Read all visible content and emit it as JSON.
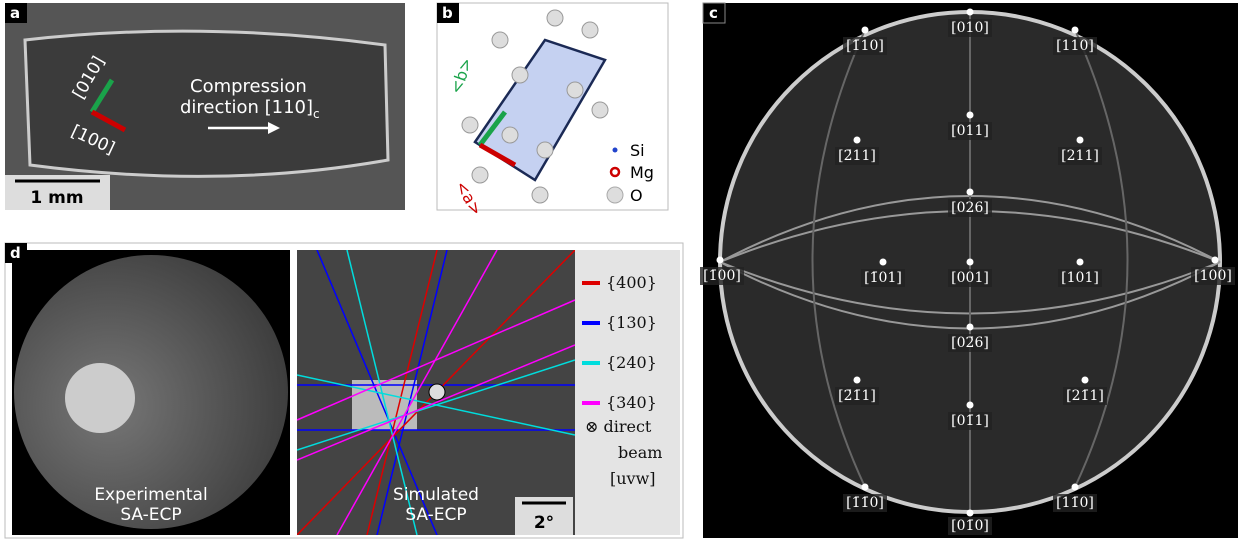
{
  "panels": {
    "a": {
      "label": "a",
      "directions": [
        "[010]",
        "[100]"
      ],
      "compression_line1": "Compression",
      "compression_line2": "direction [110]",
      "compression_subscript": "c",
      "scale_bar": "1 mm"
    },
    "b": {
      "label": "b",
      "axes": [
        "<b>",
        "<a>"
      ],
      "legend": [
        "Si",
        "Mg",
        "O"
      ]
    },
    "c": {
      "label": "c",
      "poles": [
        "[010]",
        "[1̄10]",
        "[110]",
        "[011]",
        "[2̄11]",
        "[211]",
        "[026]",
        "[1̄00]",
        "[1̄01]",
        "[001]",
        "[101]",
        "[100]",
        "[02̄6]",
        "[2̄1̄1]",
        "[21̄1]",
        "[01̄1]",
        "[1̄1̄0]",
        "[11̄0]",
        "[01̄0]"
      ]
    },
    "d": {
      "label": "d",
      "experimental": [
        "Experimental",
        "SA-ECP"
      ],
      "simulated": [
        "Simulated",
        "SA-ECP"
      ],
      "scale_bar": "2°",
      "legend": [
        "{400}",
        "{130}",
        "{240}",
        "{340}"
      ],
      "direct_beam": [
        "⊗ direct",
        "beam",
        "[uvw]"
      ]
    }
  }
}
